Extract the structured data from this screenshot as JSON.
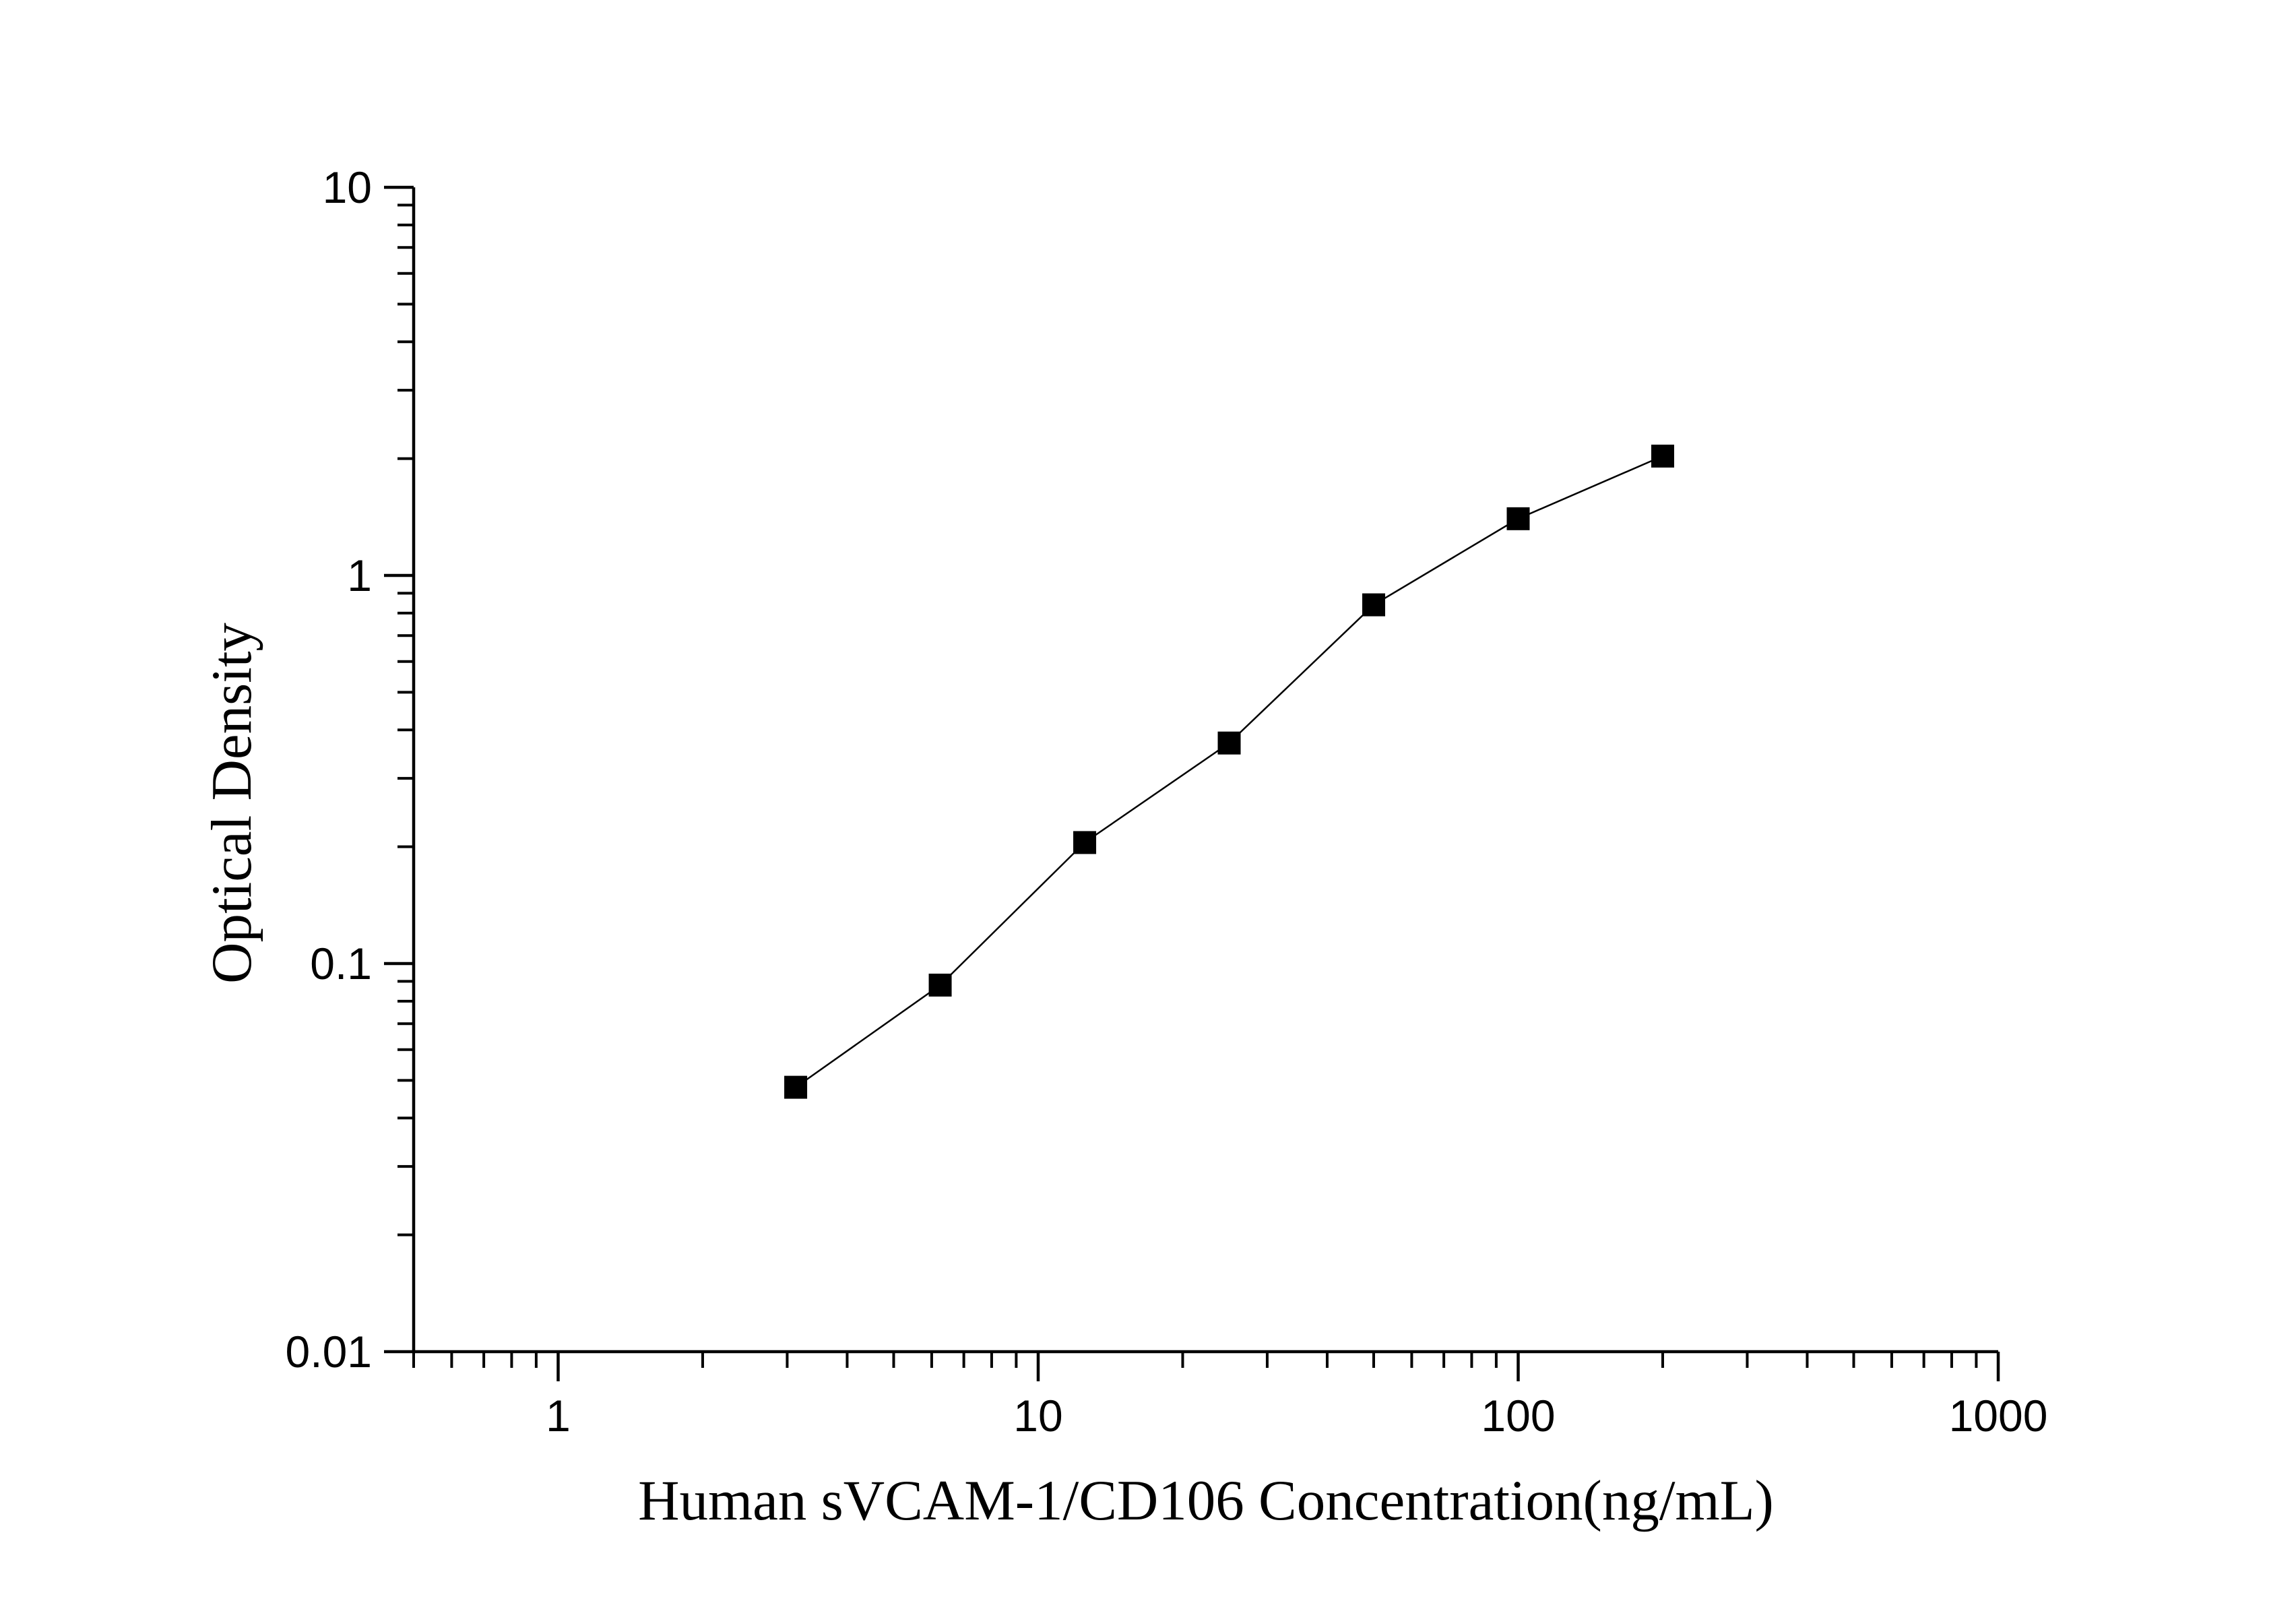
{
  "chart_data": {
    "type": "scatter",
    "title": "",
    "xlabel": "Human sVCAM-1/CD106 Concentration(ng/mL)",
    "ylabel": "Optical Density",
    "x_scale": "log",
    "y_scale": "log",
    "xlim": [
      0.5,
      1000
    ],
    "ylim": [
      0.01,
      10
    ],
    "x_ticks": [
      {
        "value": 1,
        "label": "1"
      },
      {
        "value": 10,
        "label": "10"
      },
      {
        "value": 100,
        "label": "100"
      },
      {
        "value": 1000,
        "label": "1000"
      }
    ],
    "y_ticks": [
      {
        "value": 0.01,
        "label": "0.01"
      },
      {
        "value": 0.1,
        "label": "0.1"
      },
      {
        "value": 1,
        "label": "1"
      },
      {
        "value": 10,
        "label": "10"
      }
    ],
    "grid": false,
    "legend": "none",
    "series": [
      {
        "x": [
          3.125,
          6.25,
          12.5,
          25,
          50,
          100,
          200
        ],
        "y": [
          0.048,
          0.088,
          0.205,
          0.37,
          0.84,
          1.4,
          2.03
        ],
        "marker": "square",
        "line": "connected",
        "color": "#000000"
      }
    ]
  }
}
